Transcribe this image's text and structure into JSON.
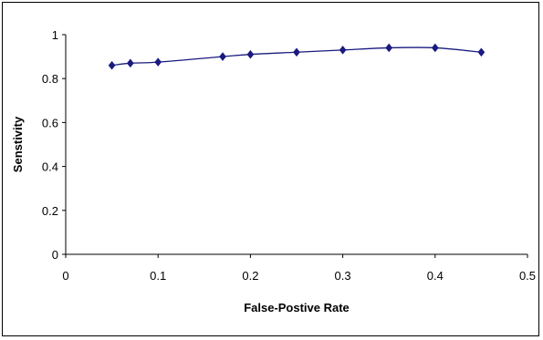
{
  "chart_data": {
    "type": "scatter",
    "title": "",
    "xlabel": "False-Postive Rate",
    "ylabel": "Senstivity",
    "xlim": [
      0,
      0.5
    ],
    "ylim": [
      0,
      1
    ],
    "x_ticks": [
      "0",
      "0.1",
      "0.2",
      "0.3",
      "0.4",
      "0.5"
    ],
    "y_ticks": [
      "0",
      "0.2",
      "0.4",
      "0.6",
      "0.8",
      "1"
    ],
    "grid": false,
    "legend": "none",
    "smoothed_line": true,
    "series": [
      {
        "color": "#1a1a80",
        "marker": "diamond",
        "x": [
          0.05,
          0.07,
          0.1,
          0.17,
          0.2,
          0.25,
          0.3,
          0.35,
          0.4,
          0.45
        ],
        "y": [
          0.86,
          0.87,
          0.875,
          0.9,
          0.91,
          0.92,
          0.93,
          0.94,
          0.94,
          0.92
        ]
      }
    ]
  }
}
